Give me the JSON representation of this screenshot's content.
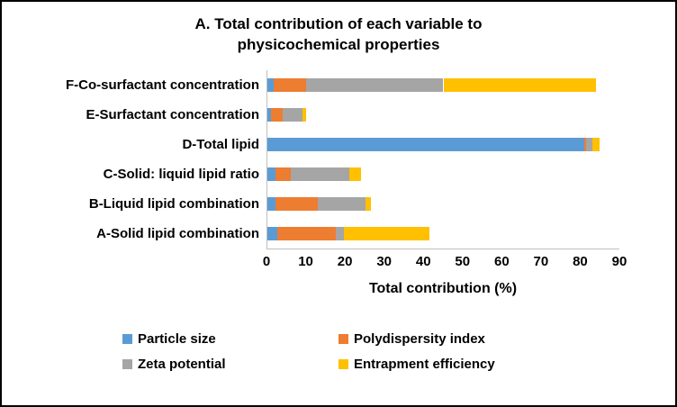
{
  "chart_data": {
    "type": "bar",
    "orientation": "horizontal-stacked",
    "title": "A. Total contribution of each variable to physicochemical properties",
    "xlabel": "Total contribution (%)",
    "xlim": [
      0,
      90
    ],
    "xticks": [
      0,
      10,
      20,
      30,
      40,
      50,
      60,
      70,
      80,
      90
    ],
    "categories": [
      "F-Co-surfactant concentration",
      "E-Surfactant concentration",
      "D-Total lipid",
      "C-Solid: liquid lipid ratio",
      "B-Liquid lipid combination",
      "A-Solid lipid combination"
    ],
    "series": [
      {
        "name": "Particle size",
        "color": "#5B9BD5",
        "values": [
          1.5,
          1,
          81,
          2,
          2,
          2.5
        ]
      },
      {
        "name": "Polydispersity index",
        "color": "#ED7D31",
        "values": [
          8.5,
          3,
          0.5,
          4,
          11,
          15
        ]
      },
      {
        "name": "Zeta potential",
        "color": "#A5A5A5",
        "values": [
          35,
          5,
          1.5,
          15,
          12,
          2
        ]
      },
      {
        "name": "Entrapment efficiency",
        "color": "#FFC000",
        "values": [
          39,
          1,
          2,
          3,
          1.5,
          22
        ]
      }
    ],
    "legend_position": "bottom",
    "grid": false
  }
}
